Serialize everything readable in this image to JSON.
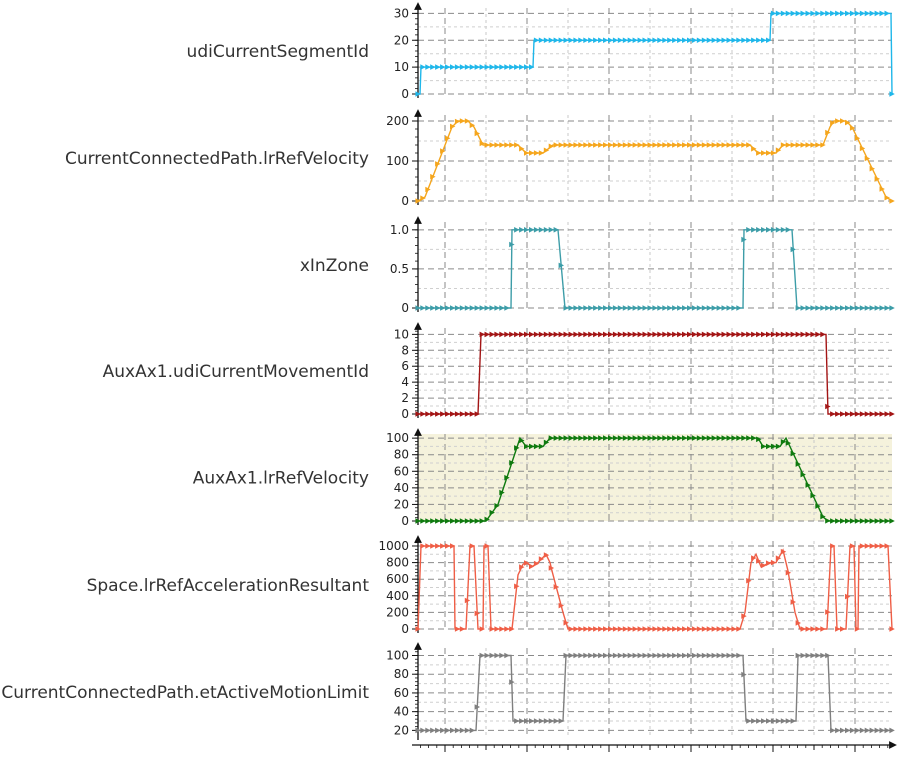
{
  "chart_data": [
    {
      "type": "line",
      "series": [
        {
          "name": "udiCurrentSegmentId",
          "color": "#1FB7EA",
          "points": [
            [
              0,
              0
            ],
            [
              2,
              0
            ],
            [
              3,
              10
            ],
            [
              115,
              10
            ],
            [
              116,
              20
            ],
            [
              352,
              20
            ],
            [
              353,
              30
            ],
            [
              473,
              30
            ],
            [
              474,
              0
            ]
          ]
        }
      ],
      "ylim": [
        0,
        32
      ],
      "yticks": [
        0,
        10,
        20,
        30
      ],
      "grid": true
    },
    {
      "type": "line",
      "series": [
        {
          "name": "CurrentConnectedPath.lrRefVelocity",
          "color": "#F5A61D",
          "points": [
            [
              0,
              0
            ],
            [
              7,
              10
            ],
            [
              34,
              185
            ],
            [
              40,
              200
            ],
            [
              50,
              200
            ],
            [
              56,
              185
            ],
            [
              65,
              140
            ],
            [
              100,
              140
            ],
            [
              108,
              120
            ],
            [
              125,
              120
            ],
            [
              135,
              140
            ],
            [
              332,
              140
            ],
            [
              340,
              120
            ],
            [
              358,
              120
            ],
            [
              365,
              140
            ],
            [
              405,
              140
            ],
            [
              412,
              185
            ],
            [
              416,
              200
            ],
            [
              428,
              200
            ],
            [
              434,
              185
            ],
            [
              468,
              10
            ],
            [
              474,
              0
            ]
          ]
        }
      ],
      "ylim": [
        0,
        215
      ],
      "yticks": [
        0,
        100,
        200
      ],
      "grid": true
    },
    {
      "type": "line",
      "series": [
        {
          "name": "xInZone",
          "color": "#3D9DA8",
          "points": [
            [
              0,
              0
            ],
            [
              93,
              0
            ],
            [
              94,
              1
            ],
            [
              140,
              1
            ],
            [
              147,
              0
            ],
            [
              325,
              0
            ],
            [
              326,
              1
            ],
            [
              374,
              1
            ],
            [
              379,
              0
            ],
            [
              474,
              0
            ]
          ]
        }
      ],
      "ylim": [
        0,
        1.1
      ],
      "yticks": [
        0,
        0.5,
        1.0
      ],
      "ytick_labels": [
        "0",
        "0.5",
        "1.0"
      ],
      "grid": true
    },
    {
      "type": "line",
      "series": [
        {
          "name": "AuxAx1.udiCurrentMovementId",
          "color": "#A31515",
          "points": [
            [
              0,
              0
            ],
            [
              60,
              0
            ],
            [
              63,
              10
            ],
            [
              408,
              10
            ],
            [
              410,
              0
            ],
            [
              474,
              0
            ]
          ]
        }
      ],
      "ylim": [
        0,
        10.8
      ],
      "yticks": [
        0,
        2,
        4,
        6,
        8,
        10
      ],
      "grid": true
    },
    {
      "type": "line",
      "series": [
        {
          "name": "AuxAx1.lrRefVelocity",
          "color": "#0F7A0F",
          "points": [
            [
              0,
              0
            ],
            [
              68,
              0
            ],
            [
              80,
              20
            ],
            [
              102,
              100
            ],
            [
              108,
              90
            ],
            [
              125,
              90
            ],
            [
              132,
              100
            ],
            [
              340,
              100
            ],
            [
              345,
              90
            ],
            [
              362,
              90
            ],
            [
              368,
              100
            ],
            [
              405,
              5
            ],
            [
              410,
              0
            ],
            [
              474,
              0
            ]
          ]
        }
      ],
      "ylim": [
        0,
        105
      ],
      "yticks": [
        0,
        20,
        40,
        60,
        80,
        100
      ],
      "grid": true,
      "background": "#F5F2DC"
    },
    {
      "type": "line",
      "series": [
        {
          "name": "Space.lrRefAccelerationResultant",
          "color": "#EF5E46",
          "points": [
            [
              0,
              0
            ],
            [
              3,
              1000
            ],
            [
              30,
              1000
            ],
            [
              36,
              1000
            ],
            [
              37,
              0
            ],
            [
              48,
              0
            ],
            [
              52,
              1000
            ],
            [
              56,
              1000
            ],
            [
              60,
              0
            ],
            [
              65,
              0
            ],
            [
              66,
              1000
            ],
            [
              70,
              1000
            ],
            [
              73,
              0
            ],
            [
              90,
              0
            ],
            [
              94,
              0
            ],
            [
              100,
              650
            ],
            [
              105,
              780
            ],
            [
              108,
              800
            ],
            [
              114,
              750
            ],
            [
              120,
              800
            ],
            [
              128,
              900
            ],
            [
              132,
              800
            ],
            [
              134,
              700
            ],
            [
              145,
              200
            ],
            [
              150,
              0
            ],
            [
              322,
              0
            ],
            [
              327,
              200
            ],
            [
              333,
              800
            ],
            [
              338,
              900
            ],
            [
              343,
              750
            ],
            [
              352,
              800
            ],
            [
              358,
              800
            ],
            [
              365,
              950
            ],
            [
              370,
              700
            ],
            [
              377,
              200
            ],
            [
              382,
              0
            ],
            [
              405,
              0
            ],
            [
              409,
              0
            ],
            [
              413,
              1000
            ],
            [
              416,
              1000
            ],
            [
              419,
              0
            ],
            [
              428,
              0
            ],
            [
              432,
              1000
            ],
            [
              436,
              1000
            ],
            [
              438,
              0
            ],
            [
              440,
              0
            ],
            [
              441,
              1000
            ],
            [
              470,
              1000
            ],
            [
              472,
              500
            ],
            [
              474,
              0
            ]
          ]
        }
      ],
      "ylim": [
        0,
        1060
      ],
      "yticks": [
        0,
        200,
        400,
        600,
        800,
        1000
      ],
      "grid": true
    },
    {
      "type": "line",
      "series": [
        {
          "name": "CurrentConnectedPath.etActiveMotionLimit",
          "color": "#7F7F7F",
          "points": [
            [
              0,
              20
            ],
            [
              58,
              20
            ],
            [
              62,
              100
            ],
            [
              93,
              100
            ],
            [
              95,
              30
            ],
            [
              145,
              30
            ],
            [
              148,
              100
            ],
            [
              325,
              100
            ],
            [
              328,
              30
            ],
            [
              378,
              30
            ],
            [
              380,
              100
            ],
            [
              410,
              100
            ],
            [
              413,
              20
            ],
            [
              474,
              20
            ]
          ]
        }
      ],
      "ylim": [
        14,
        108
      ],
      "yticks": [
        20,
        40,
        60,
        80,
        100
      ],
      "grid": true
    }
  ]
}
